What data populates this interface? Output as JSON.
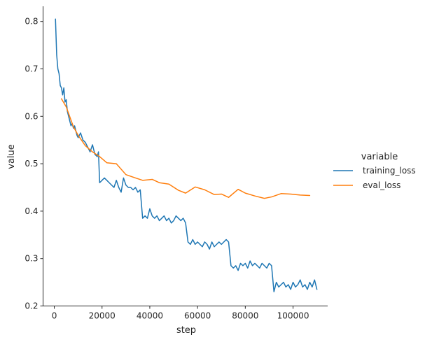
{
  "chart_data": {
    "type": "line",
    "xlabel": "step",
    "ylabel": "value",
    "xlim": [
      -4700,
      114500
    ],
    "ylim": [
      0.2,
      0.832
    ],
    "xticks": [
      0,
      20000,
      40000,
      60000,
      80000,
      100000
    ],
    "yticks": [
      0.2,
      0.3,
      0.4,
      0.5,
      0.6,
      0.7,
      0.8
    ],
    "legend": {
      "title": "variable",
      "placement": "right"
    },
    "grid": false,
    "series": [
      {
        "name": "training_loss",
        "color": "#1f77b4",
        "x": [
          500,
          1000,
          1500,
          2000,
          2500,
          3000,
          3500,
          4000,
          4500,
          5000,
          5500,
          6000,
          6500,
          7000,
          7500,
          8000,
          8500,
          9000,
          9500,
          10000,
          11000,
          12000,
          13000,
          14000,
          15000,
          16000,
          17000,
          18000,
          18500,
          19000,
          20000,
          21000,
          22000,
          23000,
          24000,
          25000,
          26000,
          27000,
          28000,
          29000,
          30000,
          31000,
          32000,
          33000,
          34000,
          35000,
          36000,
          37000,
          38000,
          39000,
          40000,
          41000,
          42000,
          43000,
          44000,
          45000,
          46000,
          47000,
          48000,
          49000,
          50000,
          51000,
          52000,
          53000,
          54000,
          55000,
          56000,
          57000,
          58000,
          59000,
          60000,
          61000,
          62000,
          63000,
          64000,
          65000,
          66000,
          67000,
          68000,
          69000,
          70000,
          71000,
          72000,
          73000,
          74000,
          75000,
          76000,
          77000,
          78000,
          79000,
          80000,
          81000,
          82000,
          83000,
          84000,
          85000,
          86000,
          87000,
          88000,
          89000,
          90000,
          91000,
          92000,
          93000,
          94000,
          95000,
          96000,
          97000,
          98000,
          99000,
          100000,
          101000,
          102000,
          103000,
          104000,
          105000,
          106000,
          107000,
          108000,
          109000,
          110000
        ],
        "values": [
          0.805,
          0.73,
          0.7,
          0.69,
          0.665,
          0.66,
          0.645,
          0.66,
          0.63,
          0.635,
          0.61,
          0.6,
          0.59,
          0.58,
          0.585,
          0.575,
          0.58,
          0.57,
          0.56,
          0.555,
          0.565,
          0.55,
          0.545,
          0.535,
          0.525,
          0.54,
          0.52,
          0.515,
          0.525,
          0.46,
          0.465,
          0.47,
          0.465,
          0.46,
          0.455,
          0.45,
          0.465,
          0.45,
          0.44,
          0.47,
          0.455,
          0.45,
          0.45,
          0.445,
          0.45,
          0.44,
          0.445,
          0.385,
          0.39,
          0.385,
          0.405,
          0.39,
          0.385,
          0.39,
          0.38,
          0.385,
          0.39,
          0.38,
          0.385,
          0.375,
          0.38,
          0.39,
          0.385,
          0.38,
          0.385,
          0.375,
          0.335,
          0.33,
          0.34,
          0.33,
          0.335,
          0.33,
          0.325,
          0.335,
          0.33,
          0.32,
          0.335,
          0.325,
          0.33,
          0.335,
          0.33,
          0.335,
          0.34,
          0.335,
          0.285,
          0.28,
          0.285,
          0.275,
          0.29,
          0.285,
          0.29,
          0.28,
          0.295,
          0.285,
          0.29,
          0.285,
          0.28,
          0.29,
          0.285,
          0.28,
          0.29,
          0.285,
          0.23,
          0.25,
          0.24,
          0.245,
          0.25,
          0.24,
          0.245,
          0.235,
          0.25,
          0.24,
          0.245,
          0.255,
          0.24,
          0.245,
          0.235,
          0.25,
          0.24,
          0.255,
          0.235
        ]
      },
      {
        "name": "eval_loss",
        "color": "#ff7f0e",
        "x": [
          3000,
          5000,
          8000,
          10000,
          13000,
          16000,
          19000,
          22000,
          26000,
          30000,
          34000,
          37000,
          41000,
          44000,
          48000,
          52000,
          55000,
          59000,
          63000,
          67000,
          70000,
          73000,
          77000,
          80000,
          84000,
          88000,
          91000,
          95000,
          99000,
          103000,
          107000
        ],
        "values": [
          0.637,
          0.62,
          0.578,
          0.56,
          0.538,
          0.525,
          0.515,
          0.502,
          0.5,
          0.477,
          0.47,
          0.465,
          0.467,
          0.46,
          0.457,
          0.444,
          0.438,
          0.451,
          0.445,
          0.435,
          0.436,
          0.429,
          0.446,
          0.438,
          0.432,
          0.427,
          0.43,
          0.437,
          0.436,
          0.434,
          0.433
        ]
      }
    ]
  }
}
